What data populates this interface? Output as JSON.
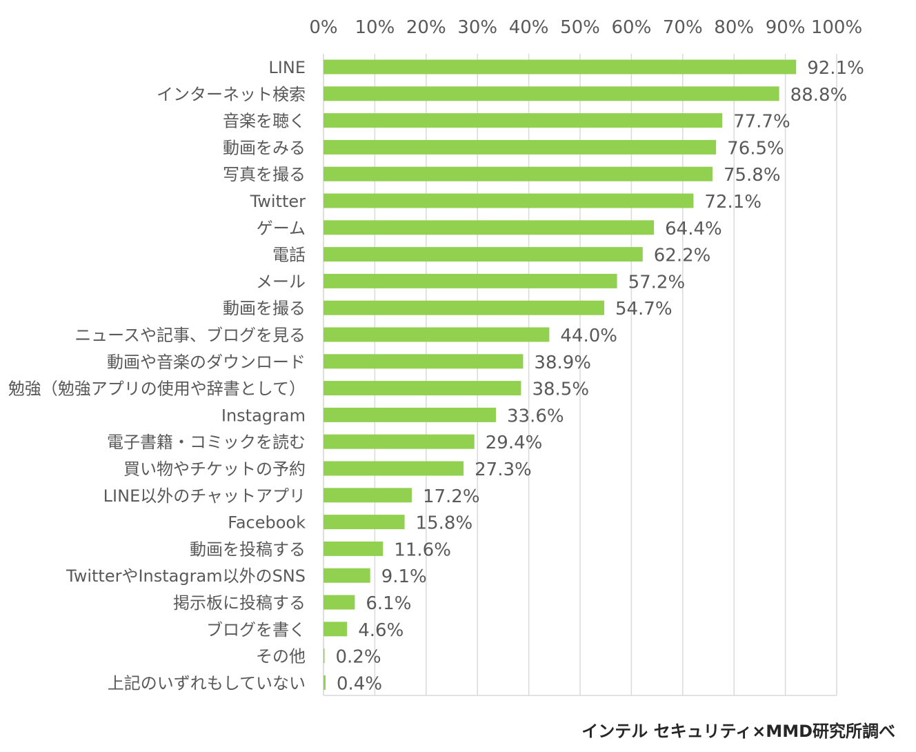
{
  "chart_data": {
    "type": "bar",
    "orientation": "horizontal",
    "categories": [
      "LINE",
      "インターネット検索",
      "音楽を聴く",
      "動画をみる",
      "写真を撮る",
      "Twitter",
      "ゲーム",
      "電話",
      "メール",
      "動画を撮る",
      "ニュースや記事、ブログを見る",
      "動画や音楽のダウンロード",
      "勉強（勉強アプリの使用や辞書として）",
      "Instagram",
      "電子書籍・コミックを読む",
      "買い物やチケットの予約",
      "LINE以外のチャットアプリ",
      "Facebook",
      "動画を投稿する",
      "TwitterやInstagram以外のSNS",
      "掲示板に投稿する",
      "ブログを書く",
      "その他",
      "上記のいずれもしていない"
    ],
    "values": [
      92.1,
      88.8,
      77.7,
      76.5,
      75.8,
      72.1,
      64.4,
      62.2,
      57.2,
      54.7,
      44.0,
      38.9,
      38.5,
      33.6,
      29.4,
      27.3,
      17.2,
      15.8,
      11.6,
      9.1,
      6.1,
      4.6,
      0.2,
      0.4
    ],
    "value_labels": [
      "92.1%",
      "88.8%",
      "77.7%",
      "76.5%",
      "75.8%",
      "72.1%",
      "64.4%",
      "62.2%",
      "57.2%",
      "54.7%",
      "44.0%",
      "38.9%",
      "38.5%",
      "33.6%",
      "29.4%",
      "27.3%",
      "17.2%",
      "15.8%",
      "11.6%",
      "9.1%",
      "6.1%",
      "4.6%",
      "0.2%",
      "0.4%"
    ],
    "xlim": [
      0,
      100
    ],
    "xticks": [
      0,
      10,
      20,
      30,
      40,
      50,
      60,
      70,
      80,
      90,
      100
    ],
    "xtick_labels": [
      "0%",
      "10%",
      "20%",
      "30%",
      "40%",
      "50%",
      "60%",
      "70%",
      "80%",
      "90%",
      "100%"
    ],
    "x_axis_position": "top",
    "grid": true,
    "bar_color": "#92D050",
    "grid_color": "#D9D9D9",
    "source_note": "インテル セキュリティ×MMD研究所調べ"
  }
}
